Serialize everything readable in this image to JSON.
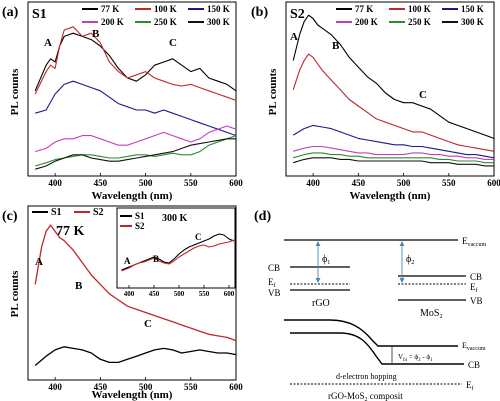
{
  "panels": {
    "a": {
      "label": "(a)",
      "sample": "S1",
      "peaks": [
        "A",
        "B",
        "C"
      ],
      "xlabel": "Wavelength (nm)",
      "ylabel": "PL counts",
      "xticks": [
        "400",
        "450",
        "500",
        "550",
        "600"
      ]
    },
    "b": {
      "label": "(b)",
      "sample": "S2",
      "peaks": [
        "A",
        "B",
        "C"
      ],
      "xlabel": "Wavelength (nm)",
      "ylabel": "PL counts",
      "xticks": [
        "400",
        "450",
        "500",
        "550",
        "600"
      ]
    },
    "c": {
      "label": "(c)",
      "temp": "77 K",
      "inset_temp": "300 K",
      "peaks": [
        "A",
        "B",
        "C"
      ],
      "inset_peaks": [
        "A",
        "B",
        "C"
      ],
      "xlabel": "Wavelength (nm)",
      "ylabel": "PL counts",
      "xticks": [
        "400",
        "450",
        "500",
        "550",
        "600"
      ],
      "inset_xticks": [
        "400",
        "450",
        "500",
        "550",
        "600"
      ]
    },
    "d": {
      "label": "(d)",
      "e_vaccum": "E",
      "e_vaccum_sub": "vaccum",
      "phi1": "ϕ",
      "phi1_sub": "1",
      "phi2": "ϕ",
      "phi2_sub": "2",
      "cb": "CB",
      "ef": "E",
      "ef_sub": "f",
      "vb": "VB",
      "rgo": "rGO",
      "mos2": "MoS",
      "mos2_sub": "2",
      "vbi": "V",
      "vbi_sub": "bi",
      "vbi_eq": " = ϕ",
      "vbi_eq2": " - ϕ",
      "hopping": "d-electron hopping",
      "composite": "rGO-MoS",
      "composite_sub": "2",
      "composite_tail": " composit"
    }
  },
  "colors": {
    "t77": "#000000",
    "t100": "#c0262c",
    "t150": "#1a1a8c",
    "t200": "#c040c0",
    "t250": "#2e8b2e",
    "t300": "#111111",
    "s1": "#000000",
    "s2": "#c0262c"
  },
  "chart_data": [
    {
      "panel": "a",
      "type": "line",
      "title": "S1",
      "xlabel": "Wavelength (nm)",
      "ylabel": "PL counts",
      "xlim": [
        370,
        600
      ],
      "series": [
        {
          "name": "77 K",
          "x": [
            378,
            390,
            395,
            400,
            405,
            410,
            420,
            430,
            440,
            450,
            460,
            470,
            480,
            490,
            500,
            510,
            520,
            530,
            540,
            550,
            560,
            570,
            580,
            590,
            600
          ],
          "y": [
            0.52,
            0.68,
            0.72,
            0.7,
            0.8,
            0.86,
            0.88,
            0.86,
            0.84,
            0.8,
            0.74,
            0.66,
            0.6,
            0.58,
            0.62,
            0.68,
            0.7,
            0.72,
            0.68,
            0.64,
            0.66,
            0.6,
            0.58,
            0.56,
            0.52
          ]
        },
        {
          "name": "100 K",
          "x": [
            378,
            390,
            395,
            400,
            405,
            410,
            420,
            430,
            440,
            450,
            460,
            470,
            480,
            490,
            500,
            510,
            520,
            530,
            540,
            550,
            560,
            570,
            580,
            590,
            600
          ],
          "y": [
            0.5,
            0.64,
            0.68,
            0.66,
            0.8,
            0.9,
            0.92,
            0.86,
            0.88,
            0.82,
            0.7,
            0.64,
            0.6,
            0.62,
            0.64,
            0.6,
            0.58,
            0.56,
            0.55,
            0.56,
            0.54,
            0.52,
            0.5,
            0.48,
            0.46
          ]
        },
        {
          "name": "150 K",
          "x": [
            378,
            390,
            400,
            410,
            420,
            430,
            440,
            450,
            460,
            470,
            480,
            490,
            500,
            510,
            520,
            530,
            540,
            550,
            560,
            570,
            580,
            590,
            600
          ],
          "y": [
            0.38,
            0.4,
            0.5,
            0.56,
            0.58,
            0.56,
            0.54,
            0.52,
            0.48,
            0.44,
            0.42,
            0.4,
            0.4,
            0.38,
            0.4,
            0.38,
            0.36,
            0.34,
            0.32,
            0.3,
            0.28,
            0.26,
            0.24
          ]
        },
        {
          "name": "200 K",
          "x": [
            378,
            390,
            400,
            410,
            420,
            430,
            440,
            450,
            460,
            470,
            480,
            490,
            500,
            510,
            520,
            530,
            540,
            550,
            560,
            570,
            580,
            590,
            600
          ],
          "y": [
            0.14,
            0.16,
            0.2,
            0.22,
            0.22,
            0.24,
            0.24,
            0.22,
            0.2,
            0.18,
            0.18,
            0.2,
            0.22,
            0.24,
            0.26,
            0.24,
            0.22,
            0.2,
            0.22,
            0.26,
            0.28,
            0.3,
            0.28
          ]
        },
        {
          "name": "250 K",
          "x": [
            378,
            390,
            400,
            410,
            420,
            430,
            440,
            450,
            460,
            470,
            480,
            490,
            500,
            510,
            520,
            530,
            540,
            550,
            560,
            570,
            580,
            590,
            600
          ],
          "y": [
            0.05,
            0.07,
            0.09,
            0.1,
            0.11,
            0.12,
            0.12,
            0.11,
            0.1,
            0.1,
            0.11,
            0.12,
            0.12,
            0.11,
            0.12,
            0.13,
            0.12,
            0.12,
            0.14,
            0.18,
            0.2,
            0.22,
            0.24
          ]
        },
        {
          "name": "300 K",
          "x": [
            378,
            390,
            400,
            410,
            420,
            430,
            440,
            450,
            460,
            470,
            480,
            490,
            500,
            510,
            520,
            530,
            540,
            550,
            560,
            570,
            580,
            590,
            600
          ],
          "y": [
            0.03,
            0.05,
            0.08,
            0.1,
            0.12,
            0.12,
            0.1,
            0.09,
            0.08,
            0.08,
            0.09,
            0.1,
            0.11,
            0.12,
            0.13,
            0.14,
            0.16,
            0.18,
            0.19,
            0.2,
            0.21,
            0.22,
            0.22
          ]
        }
      ]
    },
    {
      "panel": "b",
      "type": "line",
      "title": "S2",
      "xlabel": "Wavelength (nm)",
      "ylabel": "PL counts",
      "xlim": [
        370,
        600
      ],
      "series": [
        {
          "name": "77 K",
          "x": [
            378,
            385,
            390,
            395,
            400,
            405,
            410,
            420,
            430,
            440,
            450,
            460,
            470,
            480,
            490,
            500,
            510,
            520,
            530,
            540,
            550,
            560,
            570,
            580,
            590,
            600
          ],
          "y": [
            0.7,
            0.86,
            0.94,
            0.98,
            0.96,
            0.92,
            0.9,
            0.86,
            0.8,
            0.72,
            0.66,
            0.6,
            0.56,
            0.5,
            0.46,
            0.44,
            0.44,
            0.42,
            0.4,
            0.36,
            0.32,
            0.3,
            0.28,
            0.26,
            0.24,
            0.22
          ]
        },
        {
          "name": "100 K",
          "x": [
            378,
            385,
            390,
            395,
            400,
            410,
            420,
            430,
            440,
            450,
            460,
            470,
            480,
            490,
            500,
            510,
            520,
            530,
            540,
            550,
            560,
            570,
            580,
            590,
            600
          ],
          "y": [
            0.52,
            0.64,
            0.7,
            0.74,
            0.72,
            0.64,
            0.58,
            0.52,
            0.46,
            0.42,
            0.38,
            0.34,
            0.32,
            0.3,
            0.28,
            0.26,
            0.26,
            0.24,
            0.22,
            0.2,
            0.18,
            0.17,
            0.16,
            0.15,
            0.14
          ]
        },
        {
          "name": "150 K",
          "x": [
            378,
            390,
            400,
            410,
            420,
            430,
            440,
            450,
            460,
            470,
            480,
            490,
            500,
            510,
            520,
            530,
            540,
            550,
            560,
            570,
            580,
            590,
            600
          ],
          "y": [
            0.24,
            0.28,
            0.3,
            0.29,
            0.28,
            0.26,
            0.24,
            0.22,
            0.21,
            0.2,
            0.19,
            0.18,
            0.18,
            0.17,
            0.17,
            0.16,
            0.15,
            0.14,
            0.13,
            0.12,
            0.12,
            0.11,
            0.1
          ]
        },
        {
          "name": "200 K",
          "x": [
            378,
            390,
            400,
            410,
            420,
            430,
            440,
            450,
            460,
            470,
            480,
            490,
            500,
            510,
            520,
            530,
            540,
            550,
            560,
            570,
            580,
            590,
            600
          ],
          "y": [
            0.14,
            0.16,
            0.17,
            0.17,
            0.16,
            0.15,
            0.14,
            0.13,
            0.13,
            0.12,
            0.12,
            0.12,
            0.12,
            0.13,
            0.13,
            0.12,
            0.12,
            0.11,
            0.11,
            0.1,
            0.1,
            0.09,
            0.09
          ]
        },
        {
          "name": "250 K",
          "x": [
            378,
            390,
            400,
            410,
            420,
            430,
            440,
            450,
            460,
            470,
            480,
            490,
            500,
            510,
            520,
            530,
            540,
            550,
            560,
            570,
            580,
            590,
            600
          ],
          "y": [
            0.1,
            0.12,
            0.13,
            0.13,
            0.12,
            0.12,
            0.11,
            0.11,
            0.1,
            0.1,
            0.1,
            0.1,
            0.1,
            0.1,
            0.1,
            0.1,
            0.09,
            0.09,
            0.08,
            0.08,
            0.08,
            0.07,
            0.07
          ]
        },
        {
          "name": "300 K",
          "x": [
            378,
            390,
            400,
            410,
            420,
            430,
            440,
            450,
            460,
            470,
            480,
            490,
            500,
            510,
            520,
            530,
            540,
            550,
            560,
            570,
            580,
            590,
            600
          ],
          "y": [
            0.07,
            0.09,
            0.1,
            0.1,
            0.1,
            0.09,
            0.09,
            0.08,
            0.08,
            0.08,
            0.08,
            0.08,
            0.08,
            0.08,
            0.08,
            0.07,
            0.07,
            0.07,
            0.06,
            0.06,
            0.06,
            0.05,
            0.05
          ]
        }
      ]
    },
    {
      "panel": "c",
      "type": "line",
      "title": "77 K",
      "xlabel": "Wavelength (nm)",
      "ylabel": "PL counts",
      "xlim": [
        370,
        600
      ],
      "series": [
        {
          "name": "S1",
          "x": [
            378,
            390,
            400,
            410,
            420,
            430,
            440,
            450,
            460,
            470,
            480,
            490,
            500,
            510,
            520,
            530,
            540,
            550,
            560,
            570,
            580,
            590,
            600
          ],
          "y": [
            0.08,
            0.14,
            0.18,
            0.2,
            0.19,
            0.18,
            0.16,
            0.12,
            0.1,
            0.1,
            0.12,
            0.14,
            0.16,
            0.18,
            0.19,
            0.18,
            0.16,
            0.17,
            0.18,
            0.17,
            0.16,
            0.16,
            0.15
          ]
        },
        {
          "name": "S2",
          "x": [
            378,
            385,
            390,
            395,
            400,
            405,
            410,
            420,
            430,
            440,
            450,
            460,
            470,
            480,
            490,
            500,
            510,
            520,
            530,
            540,
            550,
            560,
            570,
            580,
            590,
            600
          ],
          "y": [
            0.6,
            0.84,
            0.94,
            0.98,
            0.94,
            0.9,
            0.88,
            0.82,
            0.74,
            0.66,
            0.6,
            0.54,
            0.5,
            0.46,
            0.44,
            0.42,
            0.4,
            0.38,
            0.36,
            0.34,
            0.32,
            0.3,
            0.28,
            0.27,
            0.26,
            0.24
          ]
        }
      ]
    },
    {
      "panel": "c-inset",
      "type": "line",
      "title": "300 K",
      "xlim": [
        380,
        610
      ],
      "series": [
        {
          "name": "S1",
          "x": [
            385,
            400,
            410,
            420,
            430,
            440,
            450,
            460,
            470,
            480,
            490,
            500,
            510,
            520,
            530,
            540,
            550,
            560,
            570,
            580,
            590,
            600,
            610
          ],
          "y": [
            0.12,
            0.18,
            0.22,
            0.26,
            0.3,
            0.34,
            0.38,
            0.34,
            0.28,
            0.26,
            0.34,
            0.44,
            0.52,
            0.58,
            0.62,
            0.66,
            0.7,
            0.74,
            0.8,
            0.84,
            0.82,
            0.74,
            0.7
          ]
        },
        {
          "name": "S2",
          "x": [
            385,
            400,
            410,
            420,
            430,
            440,
            450,
            460,
            470,
            480,
            490,
            500,
            510,
            520,
            530,
            540,
            550,
            560,
            570,
            580,
            590,
            600,
            610
          ],
          "y": [
            0.1,
            0.16,
            0.22,
            0.26,
            0.28,
            0.32,
            0.36,
            0.3,
            0.26,
            0.24,
            0.3,
            0.38,
            0.44,
            0.5,
            0.56,
            0.6,
            0.62,
            0.58,
            0.6,
            0.64,
            0.66,
            0.68,
            0.72
          ]
        }
      ]
    }
  ]
}
